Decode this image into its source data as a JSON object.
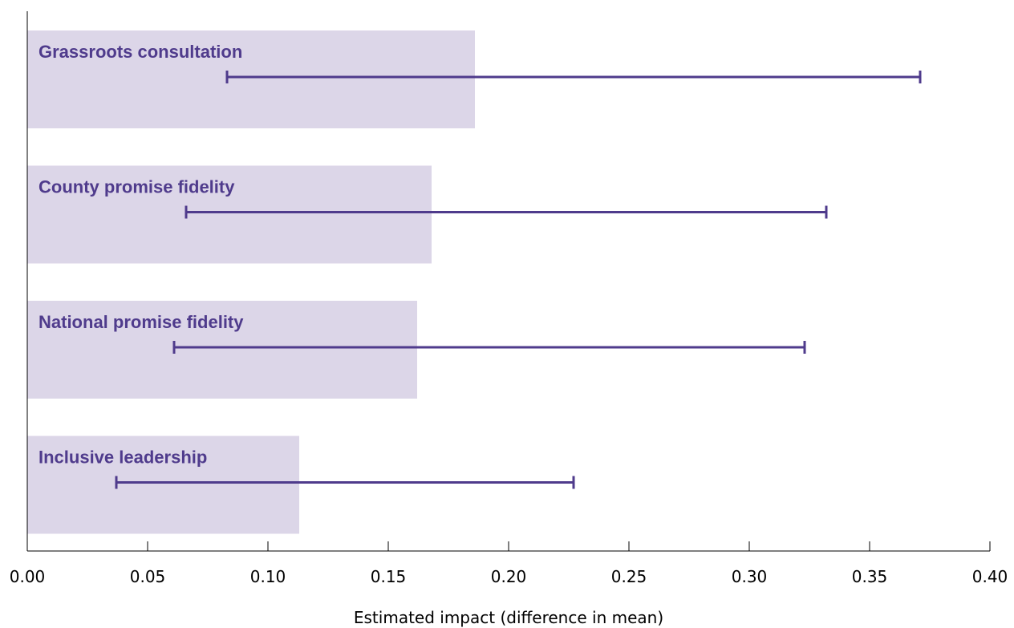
{
  "chart_data": {
    "type": "bar",
    "orientation": "horizontal",
    "title": "",
    "xlabel": "Estimated impact (difference in mean)",
    "ylabel": "",
    "xlim": [
      0,
      0.4
    ],
    "xticks": [
      "0.00",
      "0.05",
      "0.10",
      "0.15",
      "0.20",
      "0.25",
      "0.30",
      "0.35",
      "0.40"
    ],
    "grid": false,
    "legend": "none",
    "categories": [
      "Grassroots consultation",
      "County promise fidelity",
      "National promise fidelity",
      "Inclusive leadership"
    ],
    "values": [
      0.186,
      0.168,
      0.162,
      0.113
    ],
    "ci_low": [
      0.083,
      0.066,
      0.061,
      0.037
    ],
    "ci_high": [
      0.371,
      0.332,
      0.323,
      0.227
    ],
    "colors": {
      "bar": "#dcd6e8",
      "error_bar": "#4f3b8c",
      "label": "#4f3b8c"
    }
  }
}
